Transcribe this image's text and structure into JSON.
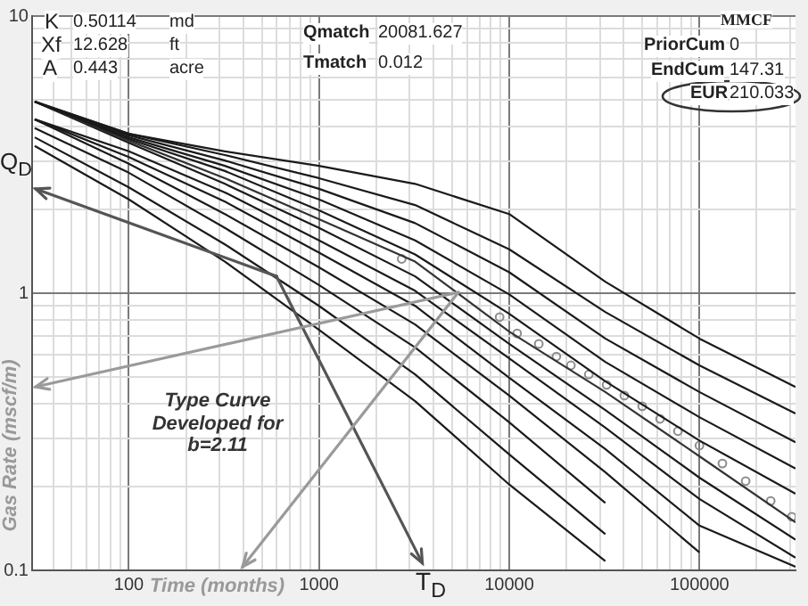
{
  "chart_data": {
    "type": "line",
    "xlabel": "Time (months)",
    "ylabel": "Gas Rate (mscf/m)",
    "log": "xy",
    "grid": true,
    "legend": false,
    "xlim": [
      31,
      320000
    ],
    "ylim": [
      0.1,
      10
    ],
    "xticks": [
      {
        "value": 40,
        "label": null
      },
      {
        "value": 50,
        "label": null
      },
      {
        "value": 60,
        "label": null
      },
      {
        "value": 70,
        "label": null
      },
      {
        "value": 80,
        "label": null
      },
      {
        "value": 90,
        "label": null
      },
      100,
      {
        "value": 200,
        "label": null
      },
      {
        "value": 300,
        "label": null
      },
      {
        "value": 400,
        "label": null
      },
      {
        "value": 500,
        "label": null
      },
      {
        "value": 600,
        "label": null
      },
      {
        "value": 700,
        "label": null
      },
      {
        "value": 800,
        "label": null
      },
      {
        "value": 900,
        "label": null
      },
      1000,
      {
        "value": 2000,
        "label": null
      },
      {
        "value": 3000,
        "label": null
      },
      {
        "value": 4000,
        "label": null
      },
      {
        "value": 5000,
        "label": null
      },
      {
        "value": 6000,
        "label": null
      },
      {
        "value": 7000,
        "label": null
      },
      {
        "value": 8000,
        "label": null
      },
      {
        "value": 9000,
        "label": null
      },
      10000,
      {
        "value": 20000,
        "label": null
      },
      {
        "value": 30000,
        "label": null
      },
      {
        "value": 40000,
        "label": null
      },
      {
        "value": 50000,
        "label": null
      },
      {
        "value": 60000,
        "label": null
      },
      {
        "value": 70000,
        "label": null
      },
      {
        "value": 80000,
        "label": null
      },
      {
        "value": 90000,
        "label": null
      },
      100000,
      {
        "value": 200000,
        "label": null
      },
      {
        "value": 300000,
        "label": null
      }
    ],
    "yticks": [
      0.1,
      {
        "value": 0.2,
        "label": null
      },
      {
        "value": 0.3,
        "label": null
      },
      {
        "value": 0.4,
        "label": null
      },
      {
        "value": 0.5,
        "label": null
      },
      {
        "value": 0.6,
        "label": null
      },
      {
        "value": 0.7,
        "label": null
      },
      {
        "value": 0.8,
        "label": null
      },
      {
        "value": 0.9,
        "label": null
      },
      1,
      {
        "value": 2,
        "label": null
      },
      {
        "value": 3,
        "label": null
      },
      {
        "value": 4,
        "label": null
      },
      {
        "value": 5,
        "label": null
      },
      {
        "value": 6,
        "label": null
      },
      {
        "value": 7,
        "label": null
      },
      {
        "value": 8,
        "label": null
      },
      {
        "value": 9,
        "label": null
      },
      10
    ],
    "series": [
      {
        "color": "#1a1a1a",
        "x": [
          32,
          100,
          320,
          1000,
          3200,
          10000,
          32000,
          100000,
          320000
        ],
        "values": [
          4.91,
          3.76,
          3.25,
          2.88,
          2.48,
          1.93,
          1.1,
          0.686,
          0.459
        ]
      },
      {
        "color": "#1a1a1a",
        "x": [
          32,
          100,
          320,
          1000,
          3200,
          10000,
          32000,
          100000,
          320000
        ],
        "values": [
          4.91,
          3.76,
          3.15,
          2.6,
          2.08,
          1.44,
          0.855,
          0.549,
          0.368
        ]
      },
      {
        "color": "#1a1a1a",
        "x": [
          32,
          100,
          320,
          1000,
          3200,
          10000,
          32000,
          100000,
          320000
        ],
        "values": [
          4.91,
          3.71,
          3.01,
          2.38,
          1.79,
          1.19,
          0.686,
          0.44,
          0.29
        ]
      },
      {
        "color": "#1a1a1a",
        "x": [
          32,
          100,
          320,
          1000,
          3200,
          10000,
          32000,
          100000,
          320000
        ],
        "values": [
          4.91,
          3.65,
          2.88,
          2.18,
          1.55,
          0.99,
          0.565,
          0.357,
          0.233
        ]
      },
      {
        "color": "#1a1a1a",
        "x": [
          32,
          100,
          320,
          1000,
          3200,
          10000,
          32000,
          100000,
          320000
        ],
        "values": [
          4.91,
          3.6,
          2.76,
          1.99,
          1.38,
          0.843,
          0.481,
          0.294,
          0.189
        ]
      },
      {
        "color": "#333333",
        "x": [
          32,
          100,
          320,
          1000,
          3200,
          10000,
          32000,
          100000,
          320000
        ],
        "values": [
          4.91,
          3.55,
          2.6,
          1.85,
          1.3,
          0.727,
          0.44,
          0.258,
          0.149
        ]
      },
      {
        "color": "#1a1a1a",
        "x": [
          32,
          100,
          320,
          1000,
          3200,
          10000,
          32000,
          100000,
          320000
        ],
        "values": [
          4.91,
          3.49,
          2.48,
          1.72,
          1.15,
          0.656,
          0.379,
          0.216,
          0.129
        ]
      },
      {
        "color": "#1a1a1a",
        "x": [
          32,
          100,
          320,
          1000,
          3200,
          10000,
          32000,
          100000,
          320000
        ],
        "values": [
          4.24,
          3.25,
          2.31,
          1.55,
          1.02,
          0.582,
          0.327,
          0.181,
          0.111
        ]
      },
      {
        "color": "#1a1a1a",
        "x": [
          32,
          100,
          320,
          1000,
          3200,
          10000,
          32000,
          100000,
          320000
        ],
        "values": [
          4.24,
          3.1,
          2.14,
          1.4,
          0.9,
          0.495,
          0.274,
          0.145,
          0.103
        ]
      },
      {
        "color": "#1a1a1a",
        "x": [
          32,
          100,
          320,
          1000,
          3200,
          10000,
          32000,
          100000
        ],
        "values": [
          4.24,
          2.93,
          1.93,
          1.24,
          0.771,
          0.427,
          0.226,
          0.116
        ]
      },
      {
        "color": "#1a1a1a",
        "x": [
          32,
          100,
          320,
          1000,
          3200,
          10000,
          32000
        ],
        "values": [
          3.94,
          2.72,
          1.72,
          1.07,
          0.637,
          0.342,
          0.175
        ]
      },
      {
        "color": "#1a1a1a",
        "x": [
          32,
          100,
          320,
          1000,
          3200,
          10000,
          32000
        ],
        "values": [
          3.65,
          2.41,
          1.5,
          0.9,
          0.509,
          0.262,
          0.135
        ]
      },
      {
        "color": "#1a1a1a",
        "x": [
          32,
          100,
          320,
          1000,
          3200,
          10000,
          32000
        ],
        "values": [
          3.4,
          2.18,
          1.3,
          0.738,
          0.408,
          0.204,
          0.108
        ]
      },
      {
        "type": "scatter",
        "marker": "circle",
        "color": "#8c8c8c",
        "x": [
          2720,
          8900,
          11000,
          14300,
          17700,
          21100,
          26200,
          32500,
          40300,
          50000,
          62100,
          77100,
          100000,
          132000,
          175000,
          237000,
          306000
        ],
        "values": [
          1.33,
          0.82,
          0.716,
          0.656,
          0.591,
          0.549,
          0.509,
          0.467,
          0.427,
          0.391,
          0.352,
          0.318,
          0.282,
          0.243,
          0.21,
          0.178,
          0.156
        ]
      }
    ],
    "annotations": [
      "K",
      "0.50114",
      "md",
      "Xf",
      "12.628",
      "ft",
      "A",
      "0.443",
      "acre",
      "Qmatch",
      "20081.627",
      "Tmatch",
      "0.012",
      "MMCF",
      "PriorCum",
      "0",
      "EndCum",
      "147.31",
      "EUR",
      "210.033",
      {
        "text": "Q$_{D}$",
        "x": 600,
        "y": 1.15
      },
      "T$_{D}$",
      "Type Curve Developed for b=2.11"
    ]
  }
}
